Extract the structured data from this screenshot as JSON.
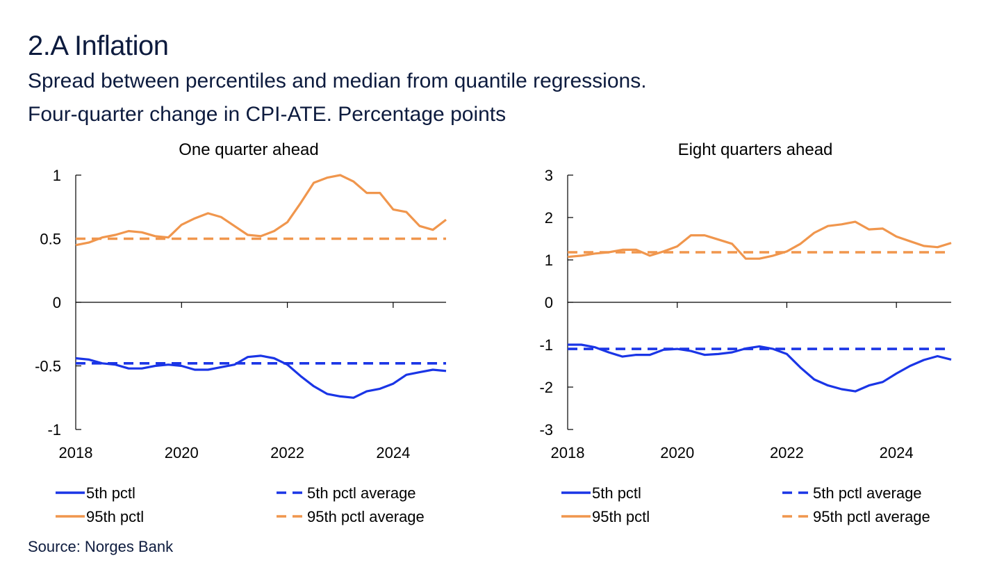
{
  "title": "2.A Inflation",
  "subtitle_line1": "Spread between percentiles and median from quantile regressions.",
  "subtitle_line2": "Four-quarter change in CPI-ATE. Percentage points",
  "source": "Source: Norges Bank",
  "colors": {
    "pctl5": "#1a35e6",
    "pctl95": "#f0964d",
    "axis": "#000000"
  },
  "chart_data": [
    {
      "type": "line",
      "title": "One quarter ahead",
      "xlabel": "",
      "ylabel": "",
      "xlim": [
        2018.0,
        2025.0
      ],
      "ylim": [
        -1,
        1
      ],
      "yticks": [
        1,
        0.5,
        0,
        -0.5,
        -1
      ],
      "ytick_labels": [
        "1",
        "0.5",
        "0",
        "-0.5",
        "-1"
      ],
      "xticks": [
        2018,
        2020,
        2022,
        2024
      ],
      "xtick_labels": [
        "2018",
        "2020",
        "2022",
        "2024"
      ],
      "x": [
        2018.0,
        2018.25,
        2018.5,
        2018.75,
        2019.0,
        2019.25,
        2019.5,
        2019.75,
        2020.0,
        2020.25,
        2020.5,
        2020.75,
        2021.0,
        2021.25,
        2021.5,
        2021.75,
        2022.0,
        2022.25,
        2022.5,
        2022.75,
        2023.0,
        2023.25,
        2023.5,
        2023.75,
        2024.0,
        2024.25,
        2024.5,
        2024.75,
        2025.0
      ],
      "series": [
        {
          "name": "5th pctl",
          "style": "solid",
          "color": "#1a35e6",
          "values": [
            -0.44,
            -0.45,
            -0.48,
            -0.49,
            -0.52,
            -0.52,
            -0.5,
            -0.49,
            -0.5,
            -0.53,
            -0.53,
            -0.51,
            -0.49,
            -0.43,
            -0.42,
            -0.44,
            -0.49,
            -0.58,
            -0.66,
            -0.72,
            -0.74,
            -0.75,
            -0.7,
            -0.68,
            -0.64,
            -0.57,
            -0.55,
            -0.53,
            -0.54
          ]
        },
        {
          "name": "5th pctl average",
          "style": "dashed",
          "color": "#1a35e6",
          "values": [
            -0.48,
            -0.48,
            -0.48,
            -0.48,
            -0.48,
            -0.48,
            -0.48,
            -0.48,
            -0.48,
            -0.48,
            -0.48,
            -0.48,
            -0.48,
            -0.48,
            -0.48,
            -0.48,
            -0.48,
            -0.48,
            -0.48,
            -0.48,
            -0.48,
            -0.48,
            -0.48,
            -0.48,
            -0.48,
            -0.48,
            -0.48,
            -0.48,
            -0.48
          ]
        },
        {
          "name": "95th pctl",
          "style": "solid",
          "color": "#f0964d",
          "values": [
            0.45,
            0.47,
            0.51,
            0.53,
            0.56,
            0.55,
            0.52,
            0.51,
            0.61,
            0.66,
            0.7,
            0.67,
            0.6,
            0.53,
            0.52,
            0.56,
            0.63,
            0.78,
            0.94,
            0.98,
            1.0,
            0.95,
            0.86,
            0.86,
            0.73,
            0.71,
            0.6,
            0.57,
            0.65
          ]
        },
        {
          "name": "95th pctl average",
          "style": "dashed",
          "color": "#f0964d",
          "values": [
            0.5,
            0.5,
            0.5,
            0.5,
            0.5,
            0.5,
            0.5,
            0.5,
            0.5,
            0.5,
            0.5,
            0.5,
            0.5,
            0.5,
            0.5,
            0.5,
            0.5,
            0.5,
            0.5,
            0.5,
            0.5,
            0.5,
            0.5,
            0.5,
            0.5,
            0.5,
            0.5,
            0.5,
            0.5
          ]
        }
      ]
    },
    {
      "type": "line",
      "title": "Eight quarters ahead",
      "xlabel": "",
      "ylabel": "",
      "xlim": [
        2018.0,
        2025.0
      ],
      "ylim": [
        -3,
        3
      ],
      "yticks": [
        3,
        2,
        1,
        0,
        -1,
        -2,
        -3
      ],
      "ytick_labels": [
        "3",
        "2",
        "1",
        "0",
        "-1",
        "-2",
        "-3"
      ],
      "xticks": [
        2018,
        2020,
        2022,
        2024
      ],
      "xtick_labels": [
        "2018",
        "2020",
        "2022",
        "2024"
      ],
      "x": [
        2018.0,
        2018.25,
        2018.5,
        2018.75,
        2019.0,
        2019.25,
        2019.5,
        2019.75,
        2020.0,
        2020.25,
        2020.5,
        2020.75,
        2021.0,
        2021.25,
        2021.5,
        2021.75,
        2022.0,
        2022.25,
        2022.5,
        2022.75,
        2023.0,
        2023.25,
        2023.5,
        2023.75,
        2024.0,
        2024.25,
        2024.5,
        2024.75,
        2025.0
      ],
      "series": [
        {
          "name": "5th pctl",
          "style": "solid",
          "color": "#1a35e6",
          "values": [
            -1.0,
            -1.0,
            -1.06,
            -1.18,
            -1.28,
            -1.24,
            -1.24,
            -1.12,
            -1.1,
            -1.15,
            -1.24,
            -1.22,
            -1.18,
            -1.09,
            -1.04,
            -1.1,
            -1.22,
            -1.54,
            -1.82,
            -1.96,
            -2.05,
            -2.1,
            -1.96,
            -1.88,
            -1.68,
            -1.5,
            -1.36,
            -1.27,
            -1.35
          ]
        },
        {
          "name": "5th pctl average",
          "style": "dashed",
          "color": "#1a35e6",
          "values": [
            -1.1,
            -1.1,
            -1.1,
            -1.1,
            -1.1,
            -1.1,
            -1.1,
            -1.1,
            -1.1,
            -1.1,
            -1.1,
            -1.1,
            -1.1,
            -1.1,
            -1.1,
            -1.1,
            -1.1,
            -1.1,
            -1.1,
            -1.1,
            -1.1,
            -1.1,
            -1.1,
            -1.1,
            -1.1,
            -1.1,
            -1.1,
            -1.1,
            -1.1
          ]
        },
        {
          "name": "95th pctl",
          "style": "solid",
          "color": "#f0964d",
          "values": [
            1.07,
            1.1,
            1.15,
            1.18,
            1.24,
            1.24,
            1.1,
            1.2,
            1.32,
            1.58,
            1.58,
            1.48,
            1.38,
            1.03,
            1.03,
            1.1,
            1.2,
            1.38,
            1.64,
            1.8,
            1.84,
            1.9,
            1.72,
            1.74,
            1.55,
            1.44,
            1.33,
            1.3,
            1.4
          ]
        },
        {
          "name": "95th pctl average",
          "style": "dashed",
          "color": "#f0964d",
          "values": [
            1.18,
            1.18,
            1.18,
            1.18,
            1.18,
            1.18,
            1.18,
            1.18,
            1.18,
            1.18,
            1.18,
            1.18,
            1.18,
            1.18,
            1.18,
            1.18,
            1.18,
            1.18,
            1.18,
            1.18,
            1.18,
            1.18,
            1.18,
            1.18,
            1.18,
            1.18,
            1.18,
            1.18,
            1.18
          ]
        }
      ]
    }
  ]
}
